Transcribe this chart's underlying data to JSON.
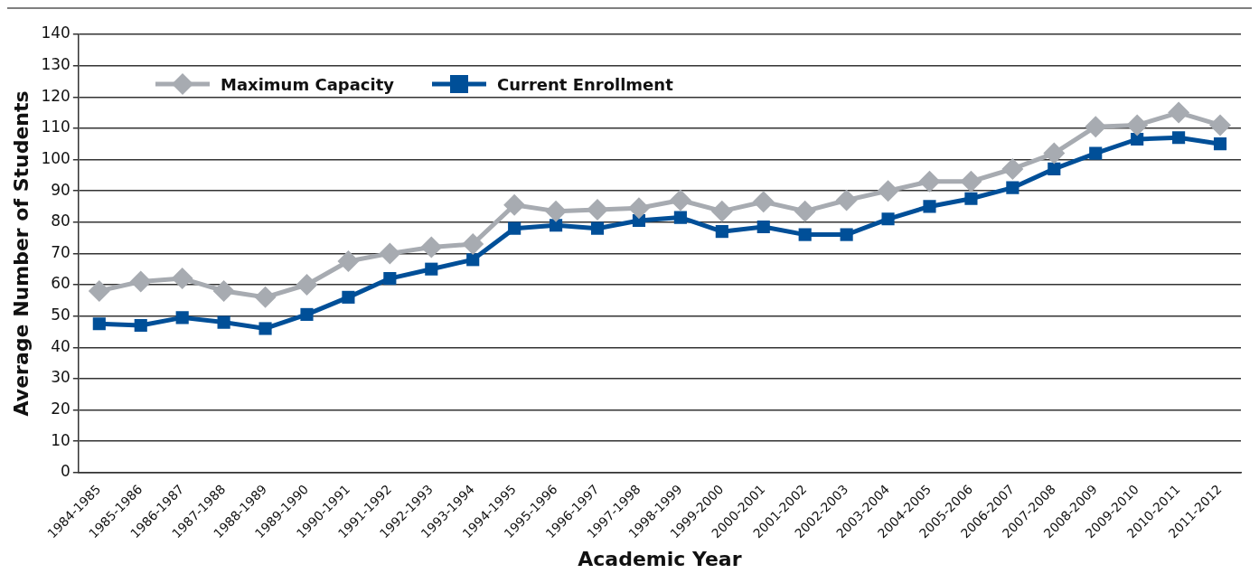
{
  "chart_data": {
    "type": "line",
    "xlabel": "Academic Year",
    "ylabel": "Average Number of Students",
    "categories": [
      "1984-1985",
      "1985-1986",
      "1986-1987",
      "1987-1988",
      "1988-1989",
      "1989-1990",
      "1990-1991",
      "1991-1992",
      "1992-1993",
      "1993-1994",
      "1994-1995",
      "1995-1996",
      "1996-1997",
      "1997-1998",
      "1998-1999",
      "1999-2000",
      "2000-2001",
      "2001-2002",
      "2002-2003",
      "2003-2004",
      "2004-2005",
      "2005-2006",
      "2006-2007",
      "2007-2008",
      "2008-2009",
      "2009-2010",
      "2010-2011",
      "2011-2012"
    ],
    "series": [
      {
        "name": "Maximum Capacity",
        "color": "#a7abb1",
        "marker": "diamond",
        "values": [
          58,
          61,
          62,
          58,
          56,
          60,
          67.5,
          70,
          72,
          73,
          85.5,
          83.5,
          84,
          84.5,
          87,
          83.5,
          86.5,
          83.5,
          87,
          90,
          93,
          93,
          97,
          102,
          110.5,
          111,
          115,
          111
        ]
      },
      {
        "name": "Current Enrollment",
        "color": "#004f98",
        "marker": "square",
        "values": [
          47.5,
          47,
          49.5,
          48,
          46,
          50.5,
          56,
          62,
          65,
          68,
          78,
          79,
          78,
          80.5,
          81.5,
          77,
          78.5,
          76,
          76,
          81,
          85,
          87.5,
          91,
          97,
          102,
          106.5,
          107,
          105
        ]
      }
    ],
    "ylim": [
      0,
      140
    ],
    "yticks": [
      0,
      10,
      20,
      30,
      40,
      50,
      60,
      70,
      80,
      90,
      100,
      110,
      120,
      130,
      140
    ],
    "grid": "y",
    "legend": "top left",
    "line_style": "solid"
  }
}
